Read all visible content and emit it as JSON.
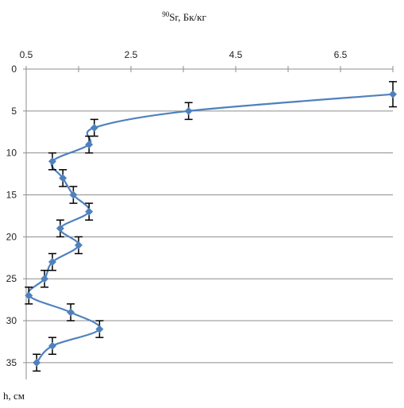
{
  "chart_data": {
    "type": "line",
    "title_superscript": "90",
    "title": "Sr, Бк/кг",
    "ylabel": "h, см",
    "xlim": [
      0.5,
      7.5
    ],
    "x_ticks": [
      "0.5",
      "2.5",
      "4.5",
      "6.5"
    ],
    "x_tick_values": [
      0.5,
      2.5,
      4.5,
      6.5
    ],
    "ylim": [
      0,
      37
    ],
    "y_ticks": [
      "0",
      "5",
      "10",
      "15",
      "20",
      "25",
      "30",
      "35"
    ],
    "y_tick_values": [
      0,
      5,
      10,
      15,
      20,
      25,
      30,
      35
    ],
    "y_reversed": true,
    "x_axis_position": "top",
    "grid": "horizontal",
    "series": [
      {
        "color": "#4f81bd",
        "marker": "diamond",
        "smooth": true,
        "error_bars": "vertical",
        "points": [
          {
            "x": 7.5,
            "y": 3,
            "err": 1.5
          },
          {
            "x": 3.6,
            "y": 5,
            "err": 1
          },
          {
            "x": 1.8,
            "y": 7,
            "err": 1
          },
          {
            "x": 1.7,
            "y": 9,
            "err": 1
          },
          {
            "x": 1.0,
            "y": 11,
            "err": 1
          },
          {
            "x": 1.2,
            "y": 13,
            "err": 1
          },
          {
            "x": 1.4,
            "y": 15,
            "err": 1
          },
          {
            "x": 1.7,
            "y": 17,
            "err": 1
          },
          {
            "x": 1.15,
            "y": 19,
            "err": 1
          },
          {
            "x": 1.5,
            "y": 21,
            "err": 1
          },
          {
            "x": 1.0,
            "y": 23,
            "err": 1
          },
          {
            "x": 0.85,
            "y": 25,
            "err": 1
          },
          {
            "x": 0.55,
            "y": 27,
            "err": 1
          },
          {
            "x": 1.35,
            "y": 29,
            "err": 1
          },
          {
            "x": 1.9,
            "y": 31,
            "err": 1
          },
          {
            "x": 1.0,
            "y": 33,
            "err": 1
          },
          {
            "x": 0.7,
            "y": 35,
            "err": 1
          }
        ]
      }
    ]
  }
}
